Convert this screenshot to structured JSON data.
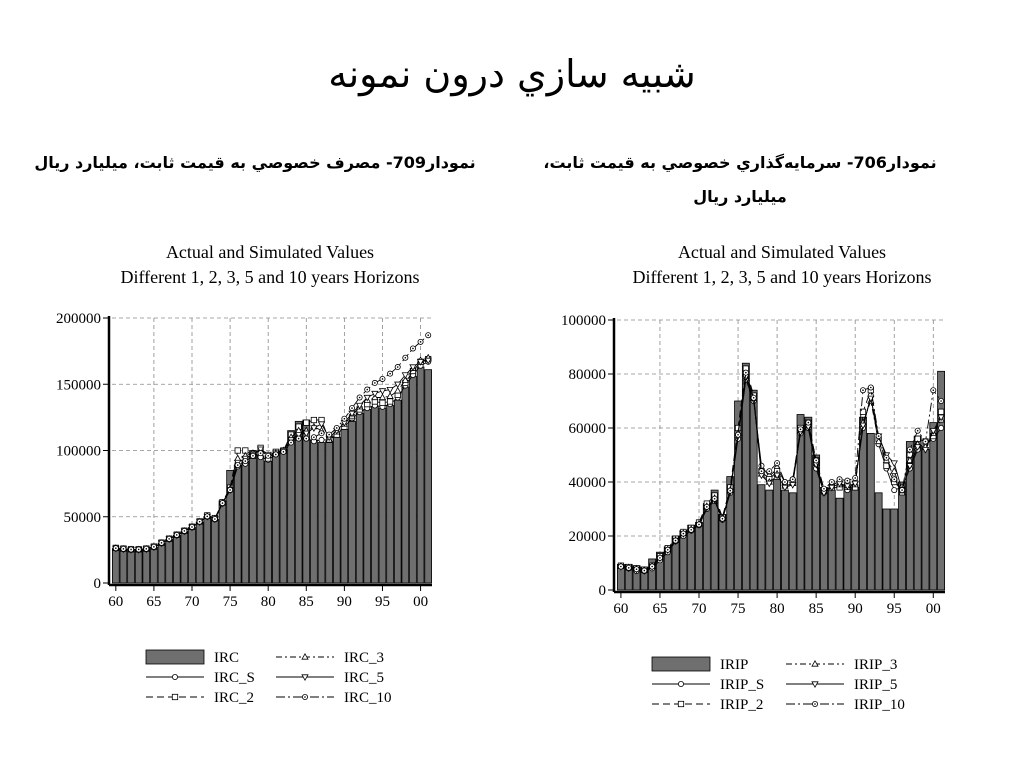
{
  "slide_title": "شبيه سازي درون نمونه",
  "left_caption": "نمودار709- مصرف خصوصي به قيمت ثابت، ميليارد ريال",
  "right_caption": "نمودار706- سرمايه‌گذاري خصوصي به قيمت ثابت، ميليارد ريال",
  "chart_data": [
    {
      "type": "bar",
      "title": "Actual and Simulated Values",
      "subtitle": "Different 1, 2, 3, 5 and 10 years Horizons",
      "xlabel": "",
      "ylabel": "",
      "x": [
        1960,
        1961,
        1962,
        1963,
        1964,
        1965,
        1966,
        1967,
        1968,
        1969,
        1970,
        1971,
        1972,
        1973,
        1974,
        1975,
        1976,
        1977,
        1978,
        1979,
        1980,
        1981,
        1982,
        1983,
        1984,
        1985,
        1986,
        1987,
        1988,
        1989,
        1990,
        1991,
        1992,
        1993,
        1994,
        1995,
        1996,
        1997,
        1998,
        1999,
        2000,
        2001
      ],
      "xticks": [
        "60",
        "65",
        "70",
        "75",
        "80",
        "85",
        "90",
        "95",
        "00"
      ],
      "yticks": [
        "0",
        "50000",
        "100000",
        "150000",
        "200000"
      ],
      "ylim": [
        0,
        200000
      ],
      "grid": true,
      "legend_position": "bottom",
      "series": [
        {
          "name": "IRC",
          "kind": "bar",
          "values": [
            26000,
            25500,
            25000,
            25000,
            25500,
            27000,
            30000,
            33000,
            36000,
            39000,
            42000,
            46000,
            50000,
            48000,
            62000,
            85000,
            89000,
            92000,
            100000,
            96000,
            92000,
            98000,
            101000,
            115000,
            122000,
            123000,
            108000,
            106000,
            107000,
            110000,
            116000,
            122000,
            128000,
            131000,
            133000,
            132000,
            134000,
            138000,
            148000,
            156000,
            163000,
            161000
          ]
        },
        {
          "name": "IRC_S",
          "kind": "line",
          "values": [
            26000,
            25500,
            25000,
            25000,
            25500,
            27000,
            30000,
            33000,
            36000,
            39000,
            42000,
            46000,
            50000,
            48000,
            60000,
            70000,
            88000,
            90000,
            98000,
            95000,
            93000,
            97000,
            100000,
            108000,
            110000,
            109000,
            107000,
            108000,
            108000,
            112000,
            118000,
            124000,
            129000,
            132000,
            134000,
            133000,
            135000,
            140000,
            149000,
            157000,
            164000,
            167000
          ]
        },
        {
          "name": "IRC_2",
          "kind": "line",
          "values": [
            26500,
            26000,
            25500,
            25500,
            26000,
            27500,
            30500,
            33500,
            36500,
            39500,
            42500,
            46500,
            51000,
            49000,
            61000,
            72000,
            100000,
            100000,
            96000,
            102000,
            94000,
            99000,
            100000,
            112000,
            118000,
            121000,
            123000,
            123000,
            108000,
            112000,
            118000,
            125000,
            131000,
            135000,
            137000,
            136000,
            137000,
            142000,
            151000,
            160000,
            167000,
            169000
          ]
        },
        {
          "name": "IRC_3",
          "kind": "line",
          "values": [
            26200,
            25700,
            25200,
            25200,
            25700,
            27200,
            30200,
            33200,
            36200,
            39200,
            42200,
            46200,
            50500,
            48500,
            60500,
            71000,
            94000,
            96000,
            98000,
            100000,
            96000,
            98000,
            100000,
            110000,
            115000,
            115000,
            118000,
            115000,
            108000,
            114000,
            120000,
            126000,
            133000,
            138000,
            140000,
            140000,
            141000,
            145000,
            153000,
            162000,
            168000,
            170000
          ]
        },
        {
          "name": "IRC_5",
          "kind": "line",
          "values": [
            26100,
            25600,
            25100,
            25100,
            25600,
            27100,
            30100,
            33100,
            36100,
            39100,
            42100,
            46100,
            50200,
            48200,
            60200,
            70500,
            91000,
            94000,
            97000,
            101000,
            97000,
            98000,
            100000,
            108000,
            112000,
            113000,
            117000,
            120000,
            110000,
            115000,
            121000,
            128000,
            134000,
            140000,
            143000,
            145000,
            146000,
            150000,
            157000,
            163000,
            167000,
            168000
          ]
        },
        {
          "name": "IRC_10",
          "kind": "line",
          "values": [
            26300,
            25800,
            25300,
            25300,
            25800,
            27300,
            30300,
            33300,
            36300,
            39300,
            42300,
            46300,
            50300,
            48300,
            60300,
            70200,
            89000,
            92000,
            96000,
            98000,
            96000,
            97000,
            99000,
            106000,
            109000,
            109000,
            110000,
            113000,
            112000,
            117000,
            124000,
            132000,
            140000,
            146000,
            151000,
            154000,
            158000,
            163000,
            170000,
            177000,
            182000,
            187000
          ]
        }
      ]
    },
    {
      "type": "bar",
      "title": "Actual and Simulated Values",
      "subtitle": "Different 1, 2, 3, 5 and 10 years Horizons",
      "xlabel": "",
      "ylabel": "",
      "x": [
        1960,
        1961,
        1962,
        1963,
        1964,
        1965,
        1966,
        1967,
        1968,
        1969,
        1970,
        1971,
        1972,
        1973,
        1974,
        1975,
        1976,
        1977,
        1978,
        1979,
        1980,
        1981,
        1982,
        1983,
        1984,
        1985,
        1986,
        1987,
        1988,
        1989,
        1990,
        1991,
        1992,
        1993,
        1994,
        1995,
        1996,
        1997,
        1998,
        1999,
        2000,
        2001
      ],
      "xticks": [
        "60",
        "65",
        "70",
        "75",
        "80",
        "85",
        "90",
        "95",
        "00"
      ],
      "yticks": [
        "0",
        "20000",
        "40000",
        "60000",
        "80000",
        "100000"
      ],
      "ylim": [
        0,
        100000
      ],
      "grid": true,
      "legend_position": "bottom",
      "series": [
        {
          "name": "IRIP",
          "kind": "bar",
          "values": [
            9500,
            9500,
            9000,
            8500,
            11500,
            14000,
            16000,
            20000,
            22000,
            24000,
            25000,
            32000,
            37000,
            28000,
            42000,
            70000,
            84000,
            74000,
            39000,
            37000,
            41000,
            37000,
            36000,
            65000,
            64000,
            50000,
            38000,
            37000,
            34000,
            38000,
            38000,
            64000,
            58000,
            36000,
            30000,
            30000,
            40000,
            55000,
            57000,
            52000,
            62000,
            81000
          ]
        },
        {
          "name": "IRIP_S",
          "kind": "line",
          "values": [
            9000,
            8000,
            7000,
            7000,
            8000,
            11000,
            14000,
            18000,
            20000,
            22000,
            24000,
            30000,
            33000,
            26000,
            36000,
            56000,
            78000,
            70000,
            46000,
            42000,
            45000,
            40000,
            41000,
            58000,
            60000,
            45000,
            36000,
            39000,
            40000,
            37000,
            40000,
            60000,
            72000,
            54000,
            45000,
            37000,
            38000,
            45000,
            52000,
            54000,
            56000,
            60000
          ]
        },
        {
          "name": "IRIP_2",
          "kind": "line",
          "values": [
            9000,
            8500,
            8000,
            7500,
            9000,
            12500,
            15500,
            19000,
            21500,
            23000,
            25000,
            32000,
            35000,
            27000,
            38000,
            60000,
            82000,
            72000,
            44000,
            41000,
            44000,
            39000,
            40000,
            60000,
            62000,
            48000,
            37000,
            38000,
            38000,
            39000,
            38000,
            66000,
            74000,
            56000,
            46000,
            40000,
            37000,
            50000,
            56000,
            55000,
            57000,
            66000
          ]
        },
        {
          "name": "IRIP_3",
          "kind": "line",
          "values": [
            8800,
            8300,
            7800,
            7300,
            8800,
            12000,
            15000,
            18500,
            21000,
            22500,
            24500,
            31000,
            34000,
            26500,
            37000,
            58000,
            80000,
            71000,
            43000,
            40000,
            43000,
            38500,
            39500,
            59000,
            61000,
            47000,
            36500,
            38500,
            39000,
            38000,
            39000,
            62000,
            70000,
            55000,
            48000,
            44000,
            36000,
            48000,
            54000,
            53000,
            58000,
            63000
          ]
        },
        {
          "name": "IRIP_5",
          "kind": "line",
          "values": [
            8600,
            8100,
            7600,
            7100,
            8600,
            11800,
            14800,
            18200,
            20800,
            22200,
            24200,
            30500,
            33500,
            26200,
            36500,
            57000,
            79000,
            70500,
            42500,
            39500,
            42500,
            38000,
            39000,
            58500,
            60500,
            46500,
            36000,
            38000,
            39500,
            38500,
            39500,
            61000,
            71000,
            57000,
            50000,
            47000,
            37000,
            46000,
            53000,
            52000,
            59000,
            64000
          ]
        },
        {
          "name": "IRIP_10",
          "kind": "line",
          "values": [
            8700,
            8200,
            7700,
            7200,
            8700,
            11900,
            14900,
            18300,
            20900,
            22300,
            24300,
            30800,
            33800,
            26400,
            36800,
            57500,
            80500,
            71200,
            44000,
            44000,
            47000,
            40000,
            41000,
            59500,
            62000,
            48000,
            37500,
            40000,
            41000,
            40500,
            41500,
            74000,
            75000,
            57000,
            49000,
            41000,
            37000,
            52000,
            59000,
            55000,
            74000,
            70000
          ]
        }
      ]
    }
  ]
}
